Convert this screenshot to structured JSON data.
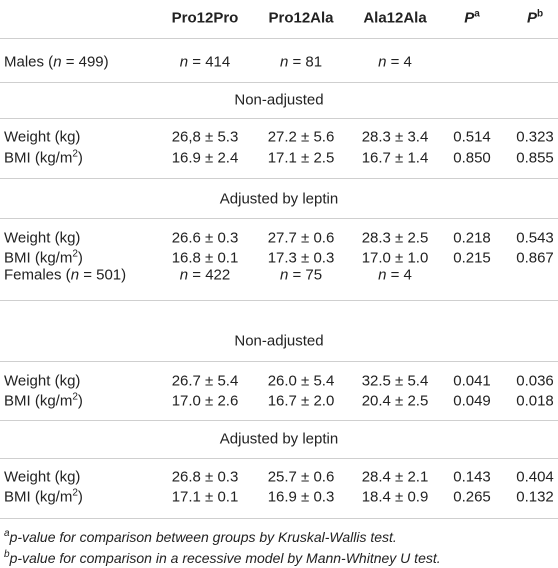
{
  "header": {
    "columns": [
      [
        "Pro12Pro"
      ],
      [
        "Pro12Ala"
      ],
      [
        "Ala12Ala"
      ],
      [
        "P",
        "a"
      ],
      [
        "P",
        "b"
      ]
    ]
  },
  "groups": [
    {
      "label": [
        "Males (",
        "n",
        " = 499)"
      ],
      "counts": [
        [
          "n",
          " = 414"
        ],
        [
          "n",
          " = 81"
        ],
        [
          "n",
          " = 4"
        ]
      ],
      "sections": [
        {
          "title": "Non-adjusted",
          "rows": [
            {
              "label": [
                "Weight (kg)"
              ],
              "cells": [
                "26,8 ± 5.3",
                "27.2 ± 5.6",
                "28.3 ± 3.4",
                "0.514",
                "0.323"
              ]
            },
            {
              "label": [
                "BMI (kg/m",
                "2",
                ")"
              ],
              "cells": [
                "16.9 ± 2.4",
                "17.1 ± 2.5",
                "16.7 ± 1.4",
                "0.850",
                "0.855"
              ]
            }
          ]
        },
        {
          "title": "Adjusted by leptin",
          "rows": [
            {
              "label": [
                "Weight (kg)"
              ],
              "cells": [
                "26.6 ± 0.3",
                "27.7 ± 0.6",
                "28.3 ± 2.5",
                "0.218",
                "0.543"
              ]
            },
            {
              "label": [
                "BMI (kg/m",
                "2",
                ")"
              ],
              "cells": [
                "16.8 ± 0.1",
                "17.3 ± 0.3",
                "17.0 ± 1.0",
                "0.215",
                "0.867"
              ]
            }
          ]
        }
      ]
    },
    {
      "label": [
        "Females (",
        "n",
        " = 501)"
      ],
      "counts": [
        [
          "n",
          " = 422"
        ],
        [
          "n",
          " = 75"
        ],
        [
          "n",
          " = 4"
        ]
      ],
      "sections": [
        {
          "title": "Non-adjusted",
          "rows": [
            {
              "label": [
                "Weight (kg)"
              ],
              "cells": [
                "26.7 ± 5.4",
                "26.0 ± 5.4",
                "32.5 ± 5.4",
                "0.041",
                "0.036"
              ]
            },
            {
              "label": [
                "BMI (kg/m",
                "2",
                ")"
              ],
              "cells": [
                "17.0 ± 2.6",
                "16.7 ± 2.0",
                "20.4 ± 2.5",
                "0.049",
                "0.018"
              ]
            }
          ]
        },
        {
          "title": "Adjusted by leptin",
          "rows": [
            {
              "label": [
                "Weight (kg)"
              ],
              "cells": [
                "26.8 ± 0.3",
                "25.7 ± 0.6",
                "28.4 ± 2.1",
                "0.143",
                "0.404"
              ]
            },
            {
              "label": [
                "BMI (kg/m",
                "2",
                ")"
              ],
              "cells": [
                "17.1 ± 0.1",
                "16.9 ± 0.3",
                "18.4 ± 0.9",
                "0.265",
                "0.132"
              ]
            }
          ]
        }
      ]
    }
  ],
  "footnotes": [
    [
      "a",
      "p-value for comparison between groups by Kruskal-Wallis test."
    ],
    [
      "b",
      "p-value for comparison in a recessive model by Mann-Whitney U test."
    ]
  ]
}
